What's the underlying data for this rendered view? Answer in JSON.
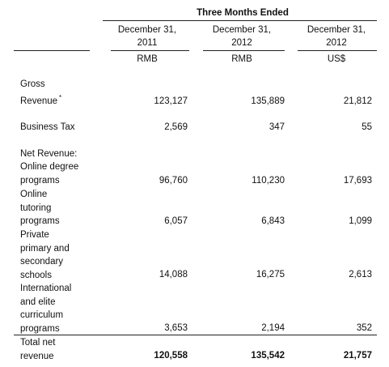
{
  "header": {
    "period": "Three Months Ended",
    "col1_date_line1": "December 31,",
    "col1_date_line2": "2011",
    "col2_date_line1": "December 31,",
    "col2_date_line2": "2012",
    "col3_date_line1": "December 31,",
    "col3_date_line2": "2012",
    "col1_currency": "RMB",
    "col2_currency": "RMB",
    "col3_currency": "US$"
  },
  "rows": {
    "gross_revenue": {
      "label_line1": "Gross",
      "label_line2": "Revenue",
      "footnote": "*",
      "values": [
        "123,127",
        "135,889",
        "21,812"
      ]
    },
    "business_tax": {
      "label": "Business Tax",
      "values": [
        "2,569",
        "347",
        "55"
      ]
    },
    "net_revenue_heading": {
      "label": "Net Revenue:"
    },
    "online_degree": {
      "label_line1": "Online degree",
      "label_line2": "programs",
      "values": [
        "96,760",
        "110,230",
        "17,693"
      ]
    },
    "online_tutoring": {
      "label_line1": "Online",
      "label_line2": "tutoring",
      "label_line3": "programs",
      "values": [
        "6,057",
        "6,843",
        "1,099"
      ]
    },
    "private_schools": {
      "label_line1": "Private",
      "label_line2": "primary and",
      "label_line3": "secondary",
      "label_line4": "schools",
      "values": [
        "14,088",
        "16,275",
        "2,613"
      ]
    },
    "international": {
      "label_line1": "International",
      "label_line2": "and elite",
      "label_line3": "curriculum",
      "label_line4": "programs",
      "values": [
        "3,653",
        "2,194",
        "352"
      ]
    },
    "total_net_revenue": {
      "label_line1": "Total net",
      "label_line2": "revenue",
      "values": [
        "120,558",
        "135,542",
        "21,757"
      ]
    }
  }
}
